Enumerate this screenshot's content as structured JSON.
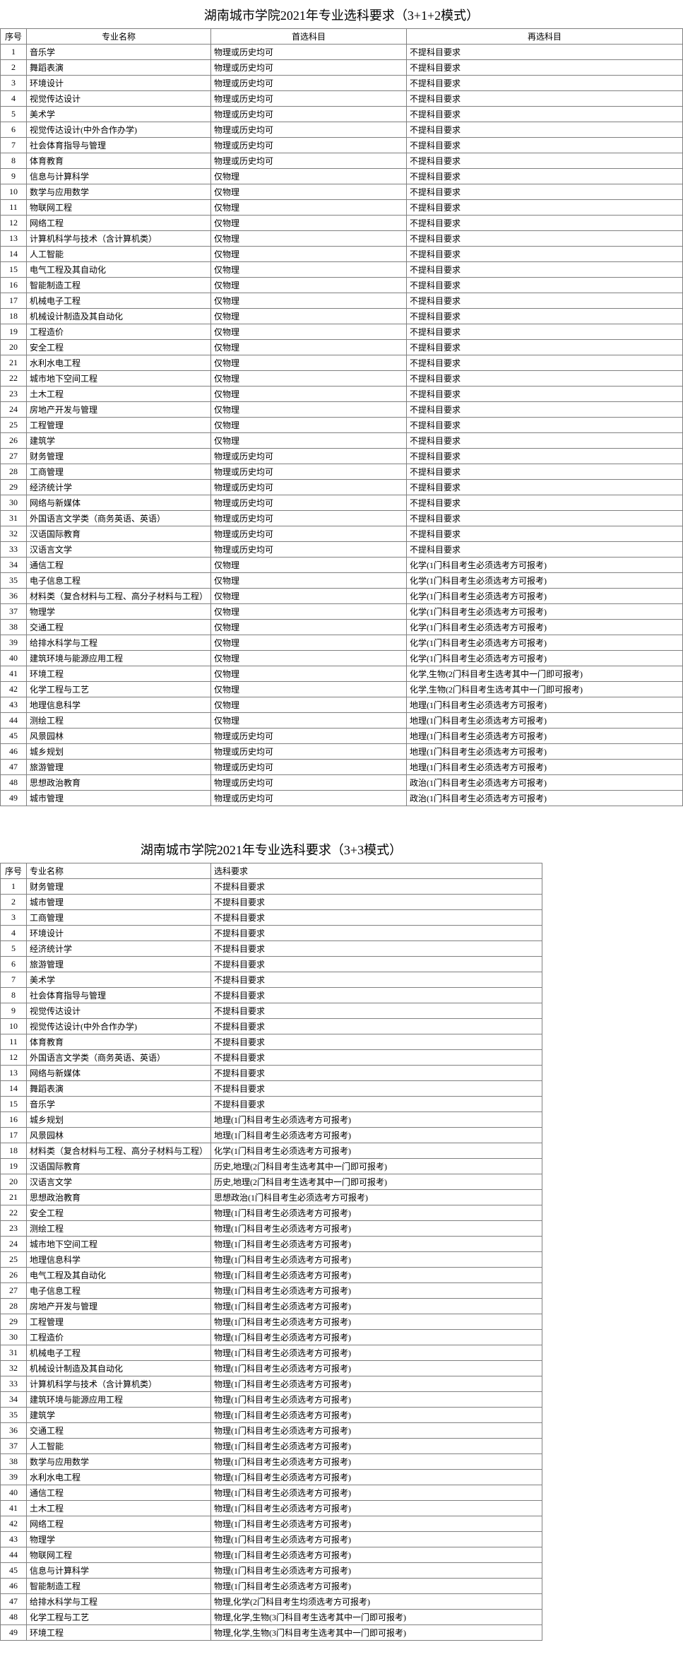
{
  "table1": {
    "title": "湖南城市学院2021年专业选科要求（3+1+2模式）",
    "headers": [
      "序号",
      "专业名称",
      "首选科目",
      "再选科目"
    ],
    "rows": [
      [
        "1",
        "音乐学",
        "物理或历史均可",
        "不提科目要求"
      ],
      [
        "2",
        "舞蹈表演",
        "物理或历史均可",
        "不提科目要求"
      ],
      [
        "3",
        "环境设计",
        "物理或历史均可",
        "不提科目要求"
      ],
      [
        "4",
        "视觉传达设计",
        "物理或历史均可",
        "不提科目要求"
      ],
      [
        "5",
        "美术学",
        "物理或历史均可",
        "不提科目要求"
      ],
      [
        "6",
        "视觉传达设计(中外合作办学)",
        "物理或历史均可",
        "不提科目要求"
      ],
      [
        "7",
        "社会体育指导与管理",
        "物理或历史均可",
        "不提科目要求"
      ],
      [
        "8",
        "体育教育",
        "物理或历史均可",
        "不提科目要求"
      ],
      [
        "9",
        "信息与计算科学",
        "仅物理",
        "不提科目要求"
      ],
      [
        "10",
        "数学与应用数学",
        "仅物理",
        "不提科目要求"
      ],
      [
        "11",
        "物联网工程",
        "仅物理",
        "不提科目要求"
      ],
      [
        "12",
        "网络工程",
        "仅物理",
        "不提科目要求"
      ],
      [
        "13",
        "计算机科学与技术（含计算机类）",
        "仅物理",
        "不提科目要求"
      ],
      [
        "14",
        "人工智能",
        "仅物理",
        "不提科目要求"
      ],
      [
        "15",
        "电气工程及其自动化",
        "仅物理",
        "不提科目要求"
      ],
      [
        "16",
        "智能制造工程",
        "仅物理",
        "不提科目要求"
      ],
      [
        "17",
        "机械电子工程",
        "仅物理",
        "不提科目要求"
      ],
      [
        "18",
        "机械设计制造及其自动化",
        "仅物理",
        "不提科目要求"
      ],
      [
        "19",
        "工程造价",
        "仅物理",
        "不提科目要求"
      ],
      [
        "20",
        "安全工程",
        "仅物理",
        "不提科目要求"
      ],
      [
        "21",
        "水利水电工程",
        "仅物理",
        "不提科目要求"
      ],
      [
        "22",
        "城市地下空间工程",
        "仅物理",
        "不提科目要求"
      ],
      [
        "23",
        "土木工程",
        "仅物理",
        "不提科目要求"
      ],
      [
        "24",
        "房地产开发与管理",
        "仅物理",
        "不提科目要求"
      ],
      [
        "25",
        "工程管理",
        "仅物理",
        "不提科目要求"
      ],
      [
        "26",
        "建筑学",
        "仅物理",
        "不提科目要求"
      ],
      [
        "27",
        "财务管理",
        "物理或历史均可",
        "不提科目要求"
      ],
      [
        "28",
        "工商管理",
        "物理或历史均可",
        "不提科目要求"
      ],
      [
        "29",
        "经济统计学",
        "物理或历史均可",
        "不提科目要求"
      ],
      [
        "30",
        "网络与新媒体",
        "物理或历史均可",
        "不提科目要求"
      ],
      [
        "31",
        "外国语言文学类（商务英语、英语）",
        "物理或历史均可",
        "不提科目要求"
      ],
      [
        "32",
        "汉语国际教育",
        "物理或历史均可",
        "不提科目要求"
      ],
      [
        "33",
        "汉语言文学",
        "物理或历史均可",
        "不提科目要求"
      ],
      [
        "34",
        "通信工程",
        "仅物理",
        "化学(1门科目考生必须选考方可报考)"
      ],
      [
        "35",
        "电子信息工程",
        "仅物理",
        "化学(1门科目考生必须选考方可报考)"
      ],
      [
        "36",
        "材料类（复合材料与工程、高分子材料与工程）",
        "仅物理",
        "化学(1门科目考生必须选考方可报考)"
      ],
      [
        "37",
        "物理学",
        "仅物理",
        "化学(1门科目考生必须选考方可报考)"
      ],
      [
        "38",
        "交通工程",
        "仅物理",
        "化学(1门科目考生必须选考方可报考)"
      ],
      [
        "39",
        "给排水科学与工程",
        "仅物理",
        "化学(1门科目考生必须选考方可报考)"
      ],
      [
        "40",
        "建筑环境与能源应用工程",
        "仅物理",
        "化学(1门科目考生必须选考方可报考)"
      ],
      [
        "41",
        "环境工程",
        "仅物理",
        "化学,生物(2门科目考生选考其中一门即可报考)"
      ],
      [
        "42",
        "化学工程与工艺",
        "仅物理",
        "化学,生物(2门科目考生选考其中一门即可报考)"
      ],
      [
        "43",
        "地理信息科学",
        "仅物理",
        "地理(1门科目考生必须选考方可报考)"
      ],
      [
        "44",
        "测绘工程",
        "仅物理",
        "地理(1门科目考生必须选考方可报考)"
      ],
      [
        "45",
        "风景园林",
        "物理或历史均可",
        "地理(1门科目考生必须选考方可报考)"
      ],
      [
        "46",
        "城乡规划",
        "物理或历史均可",
        "地理(1门科目考生必须选考方可报考)"
      ],
      [
        "47",
        "旅游管理",
        "物理或历史均可",
        "地理(1门科目考生必须选考方可报考)"
      ],
      [
        "48",
        "思想政治教育",
        "物理或历史均可",
        "政治(1门科目考生必须选考方可报考)"
      ],
      [
        "49",
        "城市管理",
        "物理或历史均可",
        "政治(1门科目考生必须选考方可报考)"
      ]
    ]
  },
  "table2": {
    "title": "湖南城市学院2021年专业选科要求（3+3模式）",
    "headers": [
      "序号",
      "专业名称",
      "选科要求"
    ],
    "rows": [
      [
        "1",
        "财务管理",
        "不提科目要求"
      ],
      [
        "2",
        "城市管理",
        "不提科目要求"
      ],
      [
        "3",
        "工商管理",
        "不提科目要求"
      ],
      [
        "4",
        "环境设计",
        "不提科目要求"
      ],
      [
        "5",
        "经济统计学",
        "不提科目要求"
      ],
      [
        "6",
        "旅游管理",
        "不提科目要求"
      ],
      [
        "7",
        "美术学",
        "不提科目要求"
      ],
      [
        "8",
        "社会体育指导与管理",
        "不提科目要求"
      ],
      [
        "9",
        "视觉传达设计",
        "不提科目要求"
      ],
      [
        "10",
        "视觉传达设计(中外合作办学)",
        "不提科目要求"
      ],
      [
        "11",
        "体育教育",
        "不提科目要求"
      ],
      [
        "12",
        "外国语言文学类（商务英语、英语）",
        "不提科目要求"
      ],
      [
        "13",
        "网络与新媒体",
        "不提科目要求"
      ],
      [
        "14",
        "舞蹈表演",
        "不提科目要求"
      ],
      [
        "15",
        "音乐学",
        "不提科目要求"
      ],
      [
        "16",
        "城乡规划",
        "地理(1门科目考生必须选考方可报考)"
      ],
      [
        "17",
        "风景园林",
        "地理(1门科目考生必须选考方可报考)"
      ],
      [
        "18",
        "材料类（复合材料与工程、高分子材料与工程）",
        "化学(1门科目考生必须选考方可报考)"
      ],
      [
        "19",
        "汉语国际教育",
        "历史,地理(2门科目考生选考其中一门即可报考)"
      ],
      [
        "20",
        "汉语言文学",
        "历史,地理(2门科目考生选考其中一门即可报考)"
      ],
      [
        "21",
        "思想政治教育",
        "思想政治(1门科目考生必须选考方可报考)"
      ],
      [
        "22",
        "安全工程",
        "物理(1门科目考生必须选考方可报考)"
      ],
      [
        "23",
        "测绘工程",
        "物理(1门科目考生必须选考方可报考)"
      ],
      [
        "24",
        "城市地下空间工程",
        "物理(1门科目考生必须选考方可报考)"
      ],
      [
        "25",
        "地理信息科学",
        "物理(1门科目考生必须选考方可报考)"
      ],
      [
        "26",
        "电气工程及其自动化",
        "物理(1门科目考生必须选考方可报考)"
      ],
      [
        "27",
        "电子信息工程",
        "物理(1门科目考生必须选考方可报考)"
      ],
      [
        "28",
        "房地产开发与管理",
        "物理(1门科目考生必须选考方可报考)"
      ],
      [
        "29",
        "工程管理",
        "物理(1门科目考生必须选考方可报考)"
      ],
      [
        "30",
        "工程造价",
        "物理(1门科目考生必须选考方可报考)"
      ],
      [
        "31",
        "机械电子工程",
        "物理(1门科目考生必须选考方可报考)"
      ],
      [
        "32",
        "机械设计制造及其自动化",
        "物理(1门科目考生必须选考方可报考)"
      ],
      [
        "33",
        "计算机科学与技术（含计算机类）",
        "物理(1门科目考生必须选考方可报考)"
      ],
      [
        "34",
        "建筑环境与能源应用工程",
        "物理(1门科目考生必须选考方可报考)"
      ],
      [
        "35",
        "建筑学",
        "物理(1门科目考生必须选考方可报考)"
      ],
      [
        "36",
        "交通工程",
        "物理(1门科目考生必须选考方可报考)"
      ],
      [
        "37",
        "人工智能",
        "物理(1门科目考生必须选考方可报考)"
      ],
      [
        "38",
        "数学与应用数学",
        "物理(1门科目考生必须选考方可报考)"
      ],
      [
        "39",
        "水利水电工程",
        "物理(1门科目考生必须选考方可报考)"
      ],
      [
        "40",
        "通信工程",
        "物理(1门科目考生必须选考方可报考)"
      ],
      [
        "41",
        "土木工程",
        "物理(1门科目考生必须选考方可报考)"
      ],
      [
        "42",
        "网络工程",
        "物理(1门科目考生必须选考方可报考)"
      ],
      [
        "43",
        "物理学",
        "物理(1门科目考生必须选考方可报考)"
      ],
      [
        "44",
        "物联网工程",
        "物理(1门科目考生必须选考方可报考)"
      ],
      [
        "45",
        "信息与计算科学",
        "物理(1门科目考生必须选考方可报考)"
      ],
      [
        "46",
        "智能制造工程",
        "物理(1门科目考生必须选考方可报考)"
      ],
      [
        "47",
        "给排水科学与工程",
        "物理,化学(2门科目考生均须选考方可报考)"
      ],
      [
        "48",
        "化学工程与工艺",
        "物理,化学,生物(3门科目考生选考其中一门即可报考)"
      ],
      [
        "49",
        "环境工程",
        "物理,化学,生物(3门科目考生选考其中一门即可报考)"
      ]
    ]
  }
}
